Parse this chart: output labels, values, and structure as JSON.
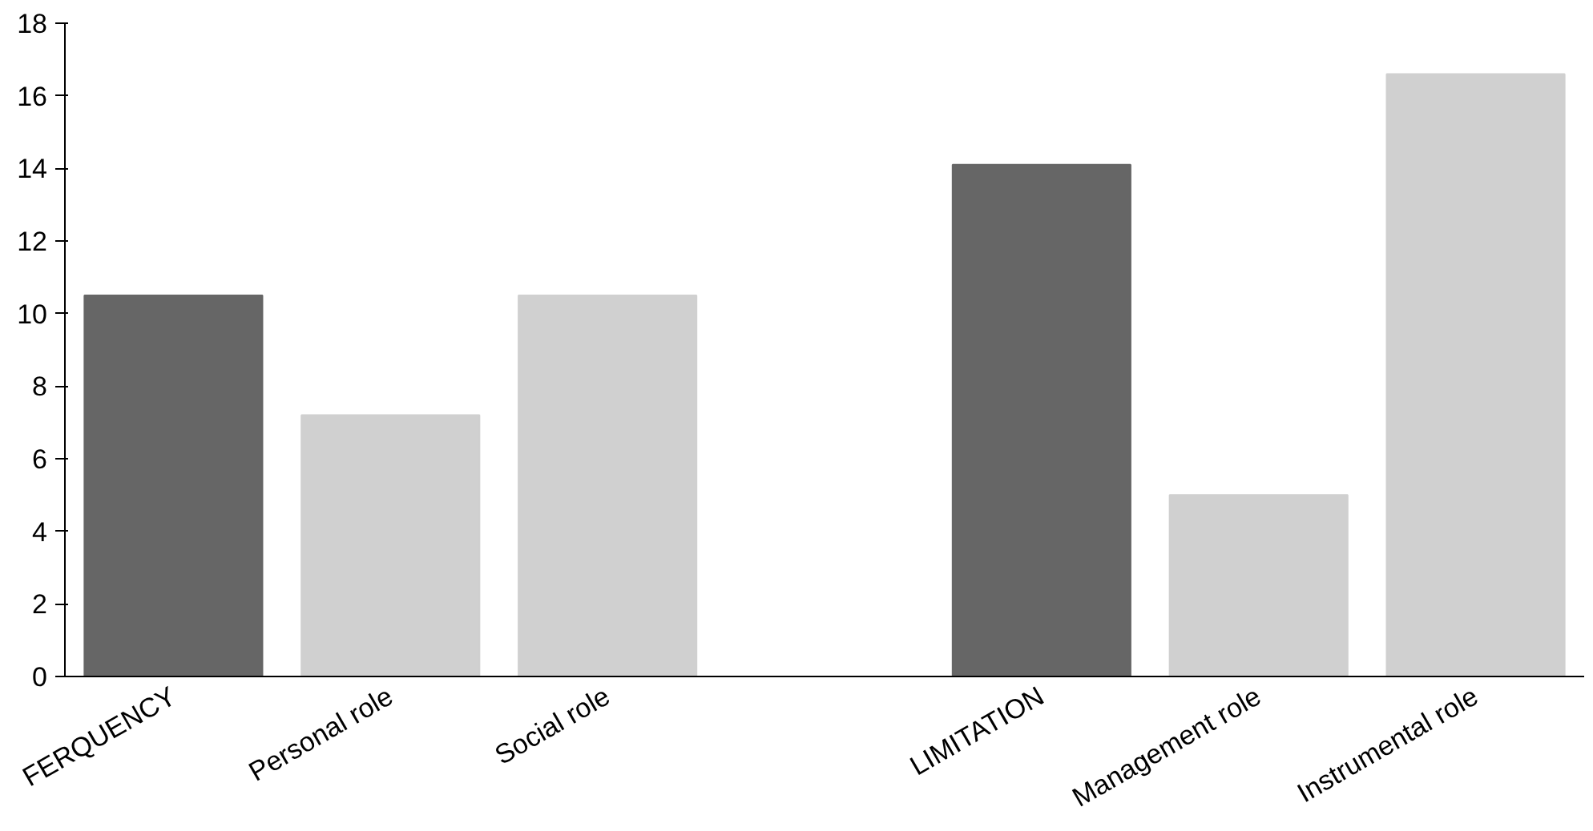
{
  "chart_data": {
    "type": "bar",
    "categories": [
      "FERQUENCY",
      "Personal role",
      "Social role",
      null,
      "LIMITATION",
      "Management role",
      "Instrumental role"
    ],
    "values": [
      10.5,
      7.2,
      10.5,
      null,
      14.1,
      5.0,
      16.6
    ],
    "colors": [
      "#666666",
      "#d0d0d0",
      "#d0d0d0",
      "#d0d0d0",
      "#666666",
      "#d0d0d0",
      "#d0d0d0"
    ],
    "ylim": [
      0,
      18
    ],
    "yticks": [
      0,
      2,
      4,
      6,
      8,
      10,
      12,
      14,
      16,
      18
    ],
    "grid": false
  }
}
